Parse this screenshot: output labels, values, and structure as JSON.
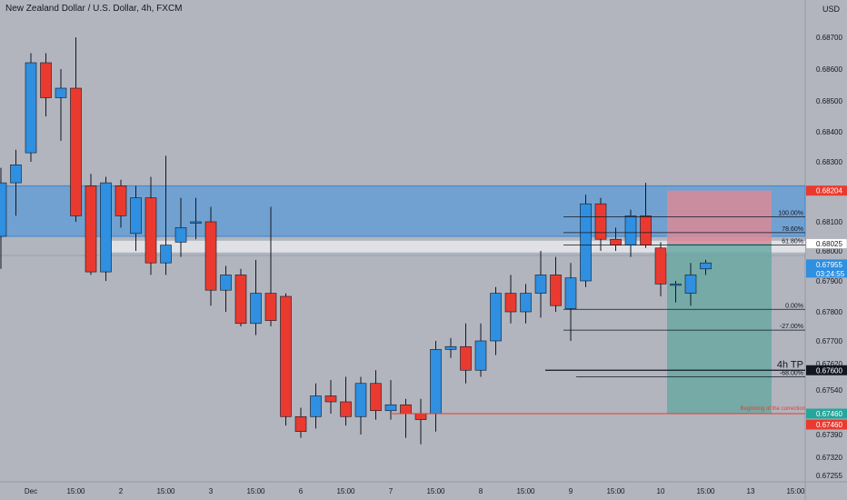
{
  "header": {
    "title": "New Zealand Dollar / U.S. Dollar, 4h, FXCM",
    "currency": "USD"
  },
  "colors": {
    "bull": "#2f8fe0",
    "bear": "#ea3a2f",
    "zone": "#5b9bd5",
    "loss": "#d98a98",
    "profit": "#6aa8a3"
  },
  "chart_data": {
    "type": "candlestick",
    "title": "New Zealand Dollar / U.S. Dollar, 4h, FXCM",
    "y_ticks": [
      "0.68700",
      "0.68600",
      "0.68500",
      "0.68400",
      "0.68300",
      "0.68200",
      "0.68100",
      "0.68000",
      "0.67900",
      "0.67800",
      "0.67700",
      "0.67620",
      "0.67540",
      "0.67460",
      "0.67390",
      "0.67320",
      "0.67255"
    ],
    "y_tick_values": [
      0.687,
      0.686,
      0.685,
      0.684,
      0.683,
      0.682,
      0.681,
      0.68,
      0.679,
      0.678,
      0.677,
      0.6762,
      0.6754,
      0.6746,
      0.6739,
      0.6732,
      0.67255
    ],
    "x_ticks": [
      "Dec",
      "15:00",
      "2",
      "15:00",
      "3",
      "15:00",
      "6",
      "15:00",
      "7",
      "15:00",
      "8",
      "15:00",
      "9",
      "15:00",
      "10",
      "15:00",
      "13",
      "15:00"
    ],
    "x_tick_index": [
      2,
      5,
      8,
      11,
      14,
      17,
      20,
      23,
      26,
      29,
      32,
      35,
      38,
      41,
      44,
      47,
      50,
      53
    ],
    "candles": [
      {
        "o": 0.6805,
        "h": 0.6828,
        "l": 0.6794,
        "c": 0.6823
      },
      {
        "o": 0.6823,
        "h": 0.6834,
        "l": 0.6812,
        "c": 0.6829
      },
      {
        "o": 0.6833,
        "h": 0.6865,
        "l": 0.683,
        "c": 0.6862
      },
      {
        "o": 0.6862,
        "h": 0.6865,
        "l": 0.6845,
        "c": 0.6851
      },
      {
        "o": 0.6851,
        "h": 0.686,
        "l": 0.6837,
        "c": 0.6854
      },
      {
        "o": 0.6854,
        "h": 0.687,
        "l": 0.681,
        "c": 0.6812
      },
      {
        "o": 0.6822,
        "h": 0.6826,
        "l": 0.6792,
        "c": 0.6793
      },
      {
        "o": 0.6793,
        "h": 0.6825,
        "l": 0.679,
        "c": 0.6823
      },
      {
        "o": 0.6822,
        "h": 0.6824,
        "l": 0.6808,
        "c": 0.6812
      },
      {
        "o": 0.6806,
        "h": 0.6822,
        "l": 0.68,
        "c": 0.6818
      },
      {
        "o": 0.6818,
        "h": 0.6825,
        "l": 0.6792,
        "c": 0.6796
      },
      {
        "o": 0.6796,
        "h": 0.6832,
        "l": 0.6792,
        "c": 0.6802
      },
      {
        "o": 0.6803,
        "h": 0.6818,
        "l": 0.6798,
        "c": 0.6808
      },
      {
        "o": 0.681,
        "h": 0.6818,
        "l": 0.6804,
        "c": 0.681
      },
      {
        "o": 0.681,
        "h": 0.6815,
        "l": 0.6782,
        "c": 0.6787
      },
      {
        "o": 0.6787,
        "h": 0.6795,
        "l": 0.678,
        "c": 0.6792
      },
      {
        "o": 0.6792,
        "h": 0.6794,
        "l": 0.6775,
        "c": 0.6776
      },
      {
        "o": 0.6776,
        "h": 0.6797,
        "l": 0.6772,
        "c": 0.6786
      },
      {
        "o": 0.6786,
        "h": 0.6815,
        "l": 0.6775,
        "c": 0.6777
      },
      {
        "o": 0.6785,
        "h": 0.6786,
        "l": 0.6742,
        "c": 0.6745
      },
      {
        "o": 0.6745,
        "h": 0.6748,
        "l": 0.6738,
        "c": 0.674
      },
      {
        "o": 0.6745,
        "h": 0.6756,
        "l": 0.6741,
        "c": 0.6752
      },
      {
        "o": 0.6752,
        "h": 0.6757,
        "l": 0.6746,
        "c": 0.675
      },
      {
        "o": 0.675,
        "h": 0.6758,
        "l": 0.6742,
        "c": 0.6745
      },
      {
        "o": 0.6745,
        "h": 0.6758,
        "l": 0.6739,
        "c": 0.6756
      },
      {
        "o": 0.6756,
        "h": 0.676,
        "l": 0.6744,
        "c": 0.6747
      },
      {
        "o": 0.6747,
        "h": 0.6757,
        "l": 0.6744,
        "c": 0.6749
      },
      {
        "o": 0.6749,
        "h": 0.6751,
        "l": 0.6738,
        "c": 0.6746
      },
      {
        "o": 0.6746,
        "h": 0.6751,
        "l": 0.6736,
        "c": 0.6744
      },
      {
        "o": 0.6746,
        "h": 0.677,
        "l": 0.674,
        "c": 0.6767
      },
      {
        "o": 0.6767,
        "h": 0.6771,
        "l": 0.6764,
        "c": 0.6768
      },
      {
        "o": 0.6768,
        "h": 0.6776,
        "l": 0.6756,
        "c": 0.676
      },
      {
        "o": 0.676,
        "h": 0.6776,
        "l": 0.6758,
        "c": 0.677
      },
      {
        "o": 0.677,
        "h": 0.6788,
        "l": 0.6765,
        "c": 0.6786
      },
      {
        "o": 0.6786,
        "h": 0.6792,
        "l": 0.6776,
        "c": 0.678
      },
      {
        "o": 0.678,
        "h": 0.6789,
        "l": 0.6776,
        "c": 0.6786
      },
      {
        "o": 0.6786,
        "h": 0.68,
        "l": 0.6778,
        "c": 0.6792
      },
      {
        "o": 0.6792,
        "h": 0.6798,
        "l": 0.678,
        "c": 0.6782
      },
      {
        "o": 0.6781,
        "h": 0.6796,
        "l": 0.677,
        "c": 0.6791
      },
      {
        "o": 0.679,
        "h": 0.6819,
        "l": 0.6788,
        "c": 0.6816
      },
      {
        "o": 0.6816,
        "h": 0.6818,
        "l": 0.68,
        "c": 0.6804
      },
      {
        "o": 0.6804,
        "h": 0.6808,
        "l": 0.68,
        "c": 0.6802
      },
      {
        "o": 0.6802,
        "h": 0.6814,
        "l": 0.6798,
        "c": 0.6812
      },
      {
        "o": 0.6812,
        "h": 0.6823,
        "l": 0.6801,
        "c": 0.6802
      },
      {
        "o": 0.6801,
        "h": 0.6803,
        "l": 0.6785,
        "c": 0.6789
      },
      {
        "o": 0.6789,
        "h": 0.679,
        "l": 0.6783,
        "c": 0.6789
      },
      {
        "o": 0.6786,
        "h": 0.6796,
        "l": 0.6782,
        "c": 0.6792
      },
      {
        "o": 0.6794,
        "h": 0.6797,
        "l": 0.6792,
        "c": 0.6796
      }
    ],
    "zone": {
      "top": 0.6822,
      "bottom": 0.6805
    },
    "white_zone": {
      "top": 0.68035,
      "bottom": 0.67995
    },
    "fib_levels": [
      {
        "label": "100.00%",
        "value": 0.68117
      },
      {
        "label": "78.60%",
        "value": 0.68063
      },
      {
        "label": "61.80%",
        "value": 0.6802
      },
      {
        "label": "0.00%",
        "value": 0.67808
      },
      {
        "label": "-27.00%",
        "value": 0.67737
      },
      {
        "label": "-68.00%",
        "value": 0.6758
      }
    ],
    "position": {
      "entry": 0.68025,
      "stop": 0.68204,
      "target": 0.6746
    },
    "price_tags": [
      {
        "label": "0.68204",
        "value": 0.68204,
        "color": "#ea3a2f"
      },
      {
        "label": "0.68025",
        "value": 0.68025,
        "color": "#ffffff",
        "text_color": "#131722"
      },
      {
        "label": "0.67955",
        "value": 0.67955,
        "color": "#2f8fe0",
        "sub": "03:24:55"
      },
      {
        "label": "0.67600",
        "value": 0.676,
        "color": "#131722"
      },
      {
        "label": "0.67460",
        "value": 0.6746,
        "color": "#26a69a"
      },
      {
        "label": "0.67460",
        "value": 0.6746,
        "color": "#ea3a2f",
        "stack": 1
      }
    ],
    "annotations": [
      {
        "text": "4h TP",
        "value": 0.676
      },
      {
        "text": "Beginning of the correction",
        "value": 0.6746
      }
    ]
  }
}
